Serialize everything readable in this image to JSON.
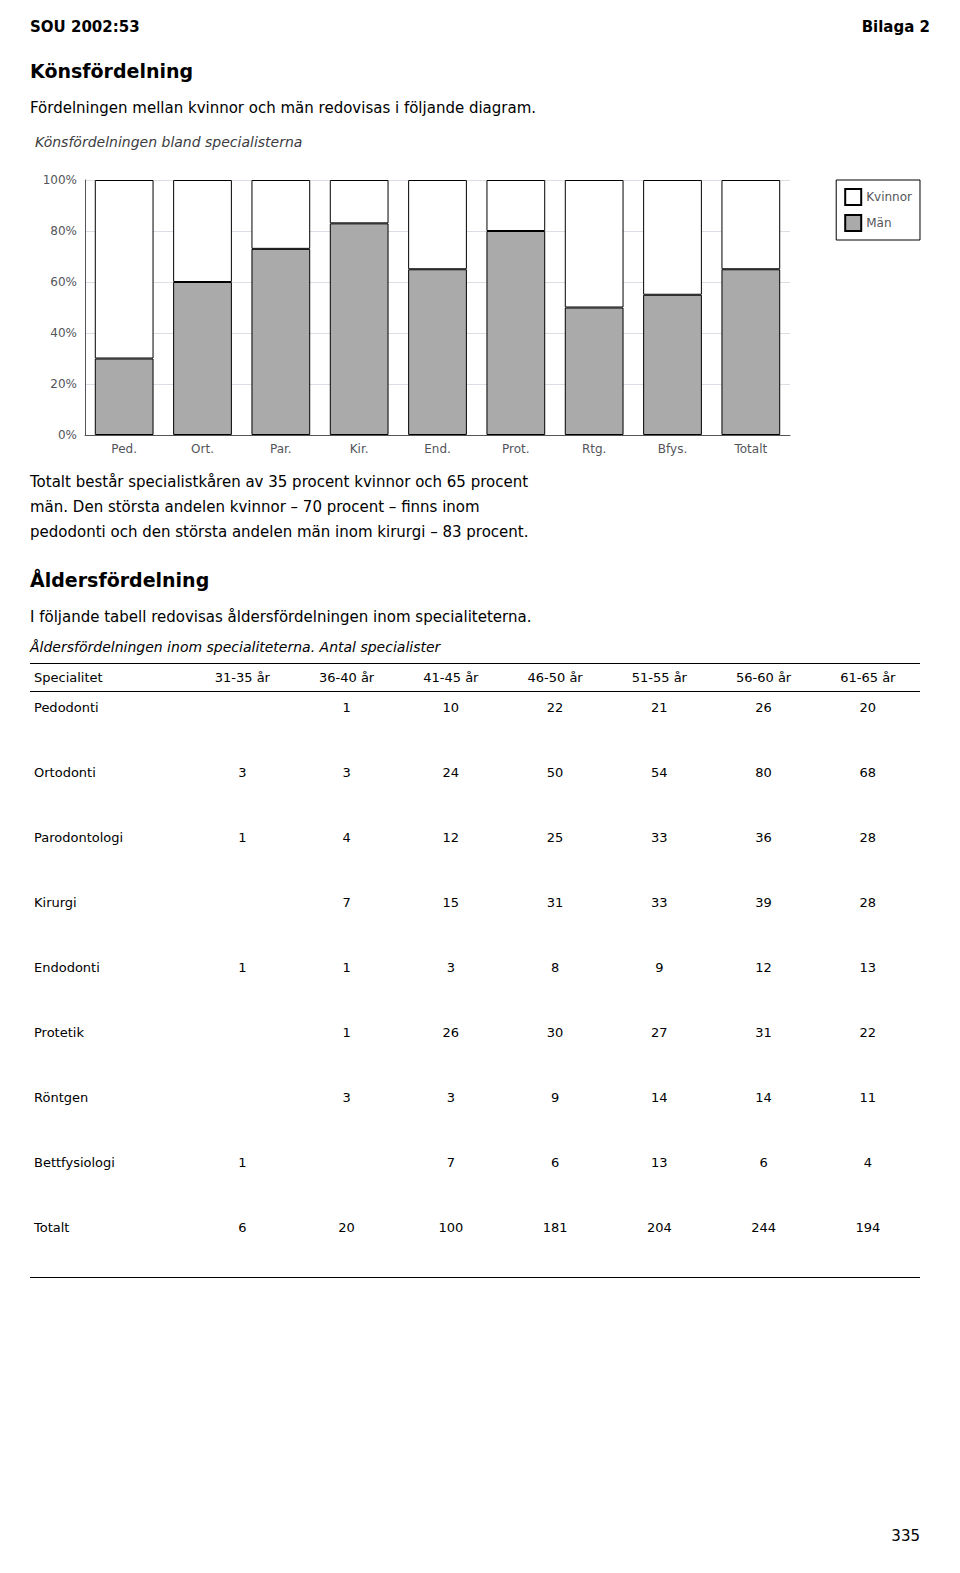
{
  "chart_data": [
    {
      "type": "bar",
      "title": "Könsfördelningen bland specialisterna",
      "categories": [
        "Ped.",
        "Ort.",
        "Par.",
        "Kir.",
        "End.",
        "Prot.",
        "Rtg.",
        "Bfys.",
        "Totalt"
      ],
      "series": [
        {
          "name": "Män",
          "color": "#aaaaaa",
          "values": [
            30,
            60,
            73,
            83,
            65,
            80,
            50,
            55,
            65
          ]
        },
        {
          "name": "Kvinnor",
          "color": "#ffffff",
          "values": [
            70,
            40,
            27,
            17,
            35,
            20,
            50,
            45,
            35
          ]
        }
      ],
      "stacked": true,
      "ylim": [
        0,
        100
      ],
      "yticks": [
        {
          "value": 0,
          "label": "0%"
        },
        {
          "value": 20,
          "label": "20%"
        },
        {
          "value": 40,
          "label": "40%"
        },
        {
          "value": 60,
          "label": "60%"
        },
        {
          "value": 80,
          "label": "80%"
        },
        {
          "value": 100,
          "label": "100%"
        }
      ],
      "grid": true,
      "legend": "right",
      "annotations": [
        "SOU 2002:53",
        "Bilaga 2",
        "Könsfördelning",
        "Fördelningen mellan kvinnor och män redovisas i följande diagram.",
        "Totalt består specialistkåren av 35 procent kvinnor och 65 procent",
        "män. Den största andelen kvinnor – 70 procent – finns inom",
        "pedodonti och den största andelen män inom kirurgi – 83 procent.",
        "Åldersfördelning",
        "I följande tabell redovisas åldersfördelningen inom specialiteterna.",
        "335"
      ]
    },
    {
      "type": "table",
      "title": "Åldersfördelningen inom specialiteterna. Antal specialister",
      "xlabel": "Specialitet",
      "categories": [
        "Pedodonti",
        "Ortodonti",
        "Parodontologi",
        "Kirurgi",
        "Endodonti",
        "Protetik",
        "Röntgen",
        "Bettfysiologi",
        "Totalt"
      ],
      "series": [
        {
          "name": "31-35 år",
          "values": [
            null,
            3,
            1,
            null,
            1,
            null,
            null,
            1,
            6
          ]
        },
        {
          "name": "36-40 år",
          "values": [
            1,
            3,
            4,
            7,
            1,
            1,
            3,
            null,
            20
          ]
        },
        {
          "name": "41-45 år",
          "values": [
            10,
            24,
            12,
            15,
            3,
            26,
            3,
            7,
            100
          ]
        },
        {
          "name": "46-50 år",
          "values": [
            22,
            50,
            25,
            31,
            8,
            30,
            9,
            6,
            181
          ]
        },
        {
          "name": "51-55 år",
          "values": [
            21,
            54,
            33,
            33,
            9,
            27,
            14,
            13,
            204
          ]
        },
        {
          "name": "56-60 år",
          "values": [
            26,
            80,
            36,
            39,
            12,
            31,
            14,
            6,
            244
          ]
        },
        {
          "name": "61-65 år",
          "values": [
            20,
            68,
            28,
            28,
            13,
            22,
            11,
            4,
            194
          ]
        }
      ]
    }
  ]
}
